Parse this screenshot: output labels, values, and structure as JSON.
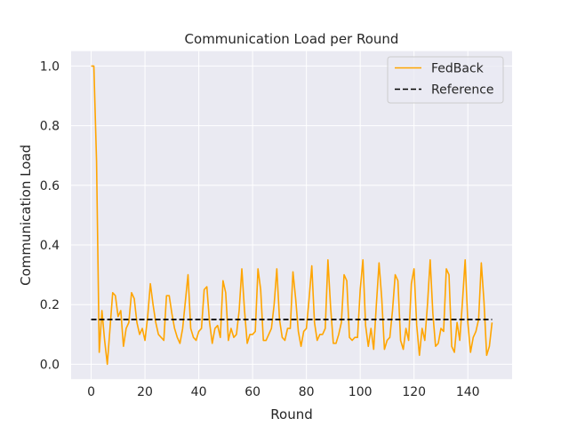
{
  "chart_data": {
    "type": "line",
    "title": "Communication Load per Round",
    "xlabel": "Round",
    "ylabel": "Communication Load",
    "xlim": [
      -7.45,
      156.45
    ],
    "ylim": [
      -0.05,
      1.05
    ],
    "xticks": [
      0,
      20,
      40,
      60,
      80,
      100,
      120,
      140
    ],
    "yticks": [
      0.0,
      0.2,
      0.4,
      0.6,
      0.8,
      1.0
    ],
    "grid": true,
    "legend_position": "upper right",
    "series": [
      {
        "name": "FedBack",
        "color": "#ffa500",
        "style": "solid",
        "x_start": 0,
        "values": [
          1.0,
          1.0,
          0.68,
          0.04,
          0.18,
          0.08,
          0.0,
          0.12,
          0.24,
          0.23,
          0.16,
          0.18,
          0.06,
          0.12,
          0.14,
          0.24,
          0.22,
          0.14,
          0.1,
          0.12,
          0.08,
          0.16,
          0.27,
          0.2,
          0.14,
          0.1,
          0.09,
          0.08,
          0.23,
          0.23,
          0.17,
          0.12,
          0.09,
          0.07,
          0.12,
          0.21,
          0.3,
          0.12,
          0.09,
          0.08,
          0.11,
          0.12,
          0.25,
          0.26,
          0.14,
          0.07,
          0.12,
          0.13,
          0.09,
          0.28,
          0.24,
          0.08,
          0.12,
          0.09,
          0.1,
          0.18,
          0.32,
          0.18,
          0.07,
          0.1,
          0.1,
          0.11,
          0.32,
          0.25,
          0.08,
          0.08,
          0.1,
          0.12,
          0.2,
          0.32,
          0.15,
          0.09,
          0.08,
          0.12,
          0.12,
          0.31,
          0.22,
          0.11,
          0.06,
          0.11,
          0.12,
          0.22,
          0.33,
          0.14,
          0.08,
          0.1,
          0.1,
          0.12,
          0.35,
          0.19,
          0.07,
          0.07,
          0.1,
          0.14,
          0.3,
          0.28,
          0.09,
          0.08,
          0.09,
          0.09,
          0.25,
          0.35,
          0.13,
          0.06,
          0.12,
          0.05,
          0.2,
          0.34,
          0.22,
          0.05,
          0.08,
          0.09,
          0.18,
          0.3,
          0.28,
          0.08,
          0.05,
          0.12,
          0.08,
          0.27,
          0.32,
          0.13,
          0.03,
          0.12,
          0.08,
          0.2,
          0.35,
          0.17,
          0.06,
          0.07,
          0.12,
          0.11,
          0.32,
          0.3,
          0.06,
          0.04,
          0.14,
          0.08,
          0.21,
          0.35,
          0.14,
          0.04,
          0.09,
          0.11,
          0.15,
          0.34,
          0.21,
          0.03,
          0.06,
          0.14
        ]
      },
      {
        "name": "Reference",
        "color": "#000000",
        "style": "dashed",
        "x": [
          0,
          149
        ],
        "values": [
          0.15,
          0.15
        ]
      }
    ]
  }
}
